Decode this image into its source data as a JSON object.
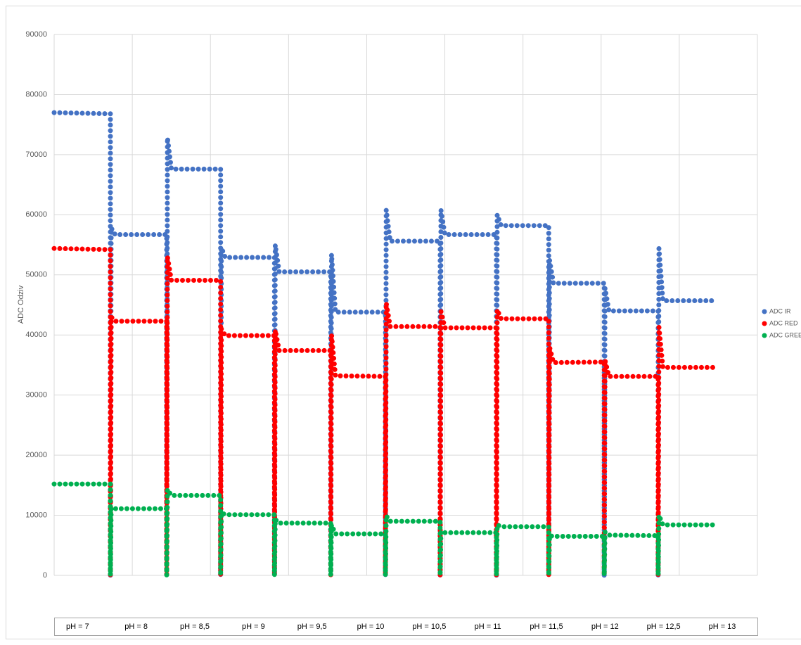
{
  "chart_data": {
    "type": "line",
    "y_label": "ADC Odziv",
    "x": [
      0,
      0.72,
      0.72,
      0.73,
      0.78,
      1.44,
      1.44,
      1.45,
      1.5,
      2.13,
      2.13,
      2.14,
      2.19,
      2.82,
      2.82,
      2.83,
      2.88,
      3.54,
      3.54,
      3.55,
      3.6,
      4.24,
      4.24,
      4.25,
      4.3,
      4.94,
      4.94,
      4.95,
      5.0,
      5.66,
      5.66,
      5.67,
      5.72,
      6.33,
      6.33,
      6.34,
      6.39,
      7.04,
      7.04,
      7.05,
      7.1,
      7.73,
      7.73,
      7.74,
      7.79,
      8.43
    ],
    "xlim": [
      0,
      9
    ],
    "ylim": [
      0,
      90000
    ],
    "yticks": [
      0,
      10000,
      20000,
      30000,
      40000,
      50000,
      60000,
      70000,
      80000,
      90000
    ],
    "grid": true,
    "legend": "right",
    "series": [
      {
        "name": "ADC IR",
        "color": "#4472c4",
        "values": [
          77000,
          76800,
          0,
          57800,
          56700,
          56700,
          0,
          72800,
          67600,
          67600,
          0,
          54500,
          52900,
          52900,
          0,
          55000,
          50500,
          50500,
          0,
          53400,
          43800,
          43800,
          0,
          60800,
          55600,
          55600,
          0,
          60800,
          56700,
          56700,
          0,
          60000,
          58200,
          58200,
          0,
          52500,
          48600,
          48600,
          0,
          47800,
          44000,
          44000,
          0,
          54400,
          45700,
          45700
        ]
      },
      {
        "name": "ADC RED",
        "color": "#ff0000",
        "values": [
          54400,
          54200,
          0,
          43000,
          42300,
          42300,
          0,
          53000,
          49100,
          49100,
          0,
          41000,
          39900,
          39900,
          0,
          40800,
          37400,
          37400,
          0,
          40000,
          33200,
          33100,
          0,
          45300,
          41400,
          41400,
          0,
          43900,
          41200,
          41200,
          0,
          44200,
          42700,
          42700,
          0,
          38000,
          35400,
          35500,
          0,
          35800,
          33100,
          33100,
          0,
          41300,
          34600,
          34600
        ]
      },
      {
        "name": "ADC GREEN",
        "color": "#00b050",
        "values": [
          15200,
          15200,
          0,
          11200,
          11100,
          11100,
          0,
          14300,
          13300,
          13300,
          0,
          10400,
          10100,
          10100,
          0,
          9300,
          8700,
          8700,
          0,
          8400,
          6900,
          6900,
          0,
          9900,
          9000,
          9000,
          0,
          7300,
          7100,
          7100,
          0,
          8400,
          8100,
          8100,
          0,
          6600,
          6500,
          6500,
          0,
          7200,
          6700,
          6600,
          0,
          10000,
          8400,
          8400
        ]
      }
    ],
    "ph_labels": [
      "pH = 7",
      "pH = 8",
      "pH = 8,5",
      "pH = 9",
      "pH = 9,5",
      "pH = 10",
      "pH = 10,5",
      "pH = 11",
      "pH = 11,5",
      "pH = 12",
      "pH = 12,5",
      "pH = 13"
    ]
  }
}
